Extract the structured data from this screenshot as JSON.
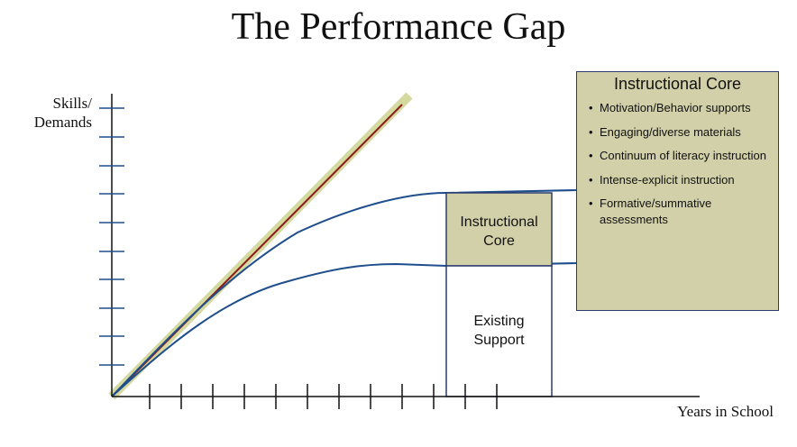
{
  "title": "The Performance Gap",
  "axes": {
    "y_label_line1": "Skills/",
    "y_label_line2": "Demands",
    "x_label": "Years in School"
  },
  "bars": {
    "instructional_core_line1": "Instructional",
    "instructional_core_line2": "Core",
    "existing_support_line1": "Existing",
    "existing_support_line2": "Support"
  },
  "panel": {
    "title": "Instructional Core",
    "items": [
      "Motivation/Behavior supports",
      "Engaging/diverse materials",
      "Continuum of literacy instruction",
      "Intense-explicit instruction",
      "Formative/summative assessments"
    ]
  },
  "colors": {
    "curve": "#1f4e8c",
    "demand_line": "#8b1a1a",
    "demand_highlight": "#d4d9a0",
    "box_fill": "#d1d0a8",
    "box_border": "#2b3d6e",
    "axis": "#111111"
  }
}
